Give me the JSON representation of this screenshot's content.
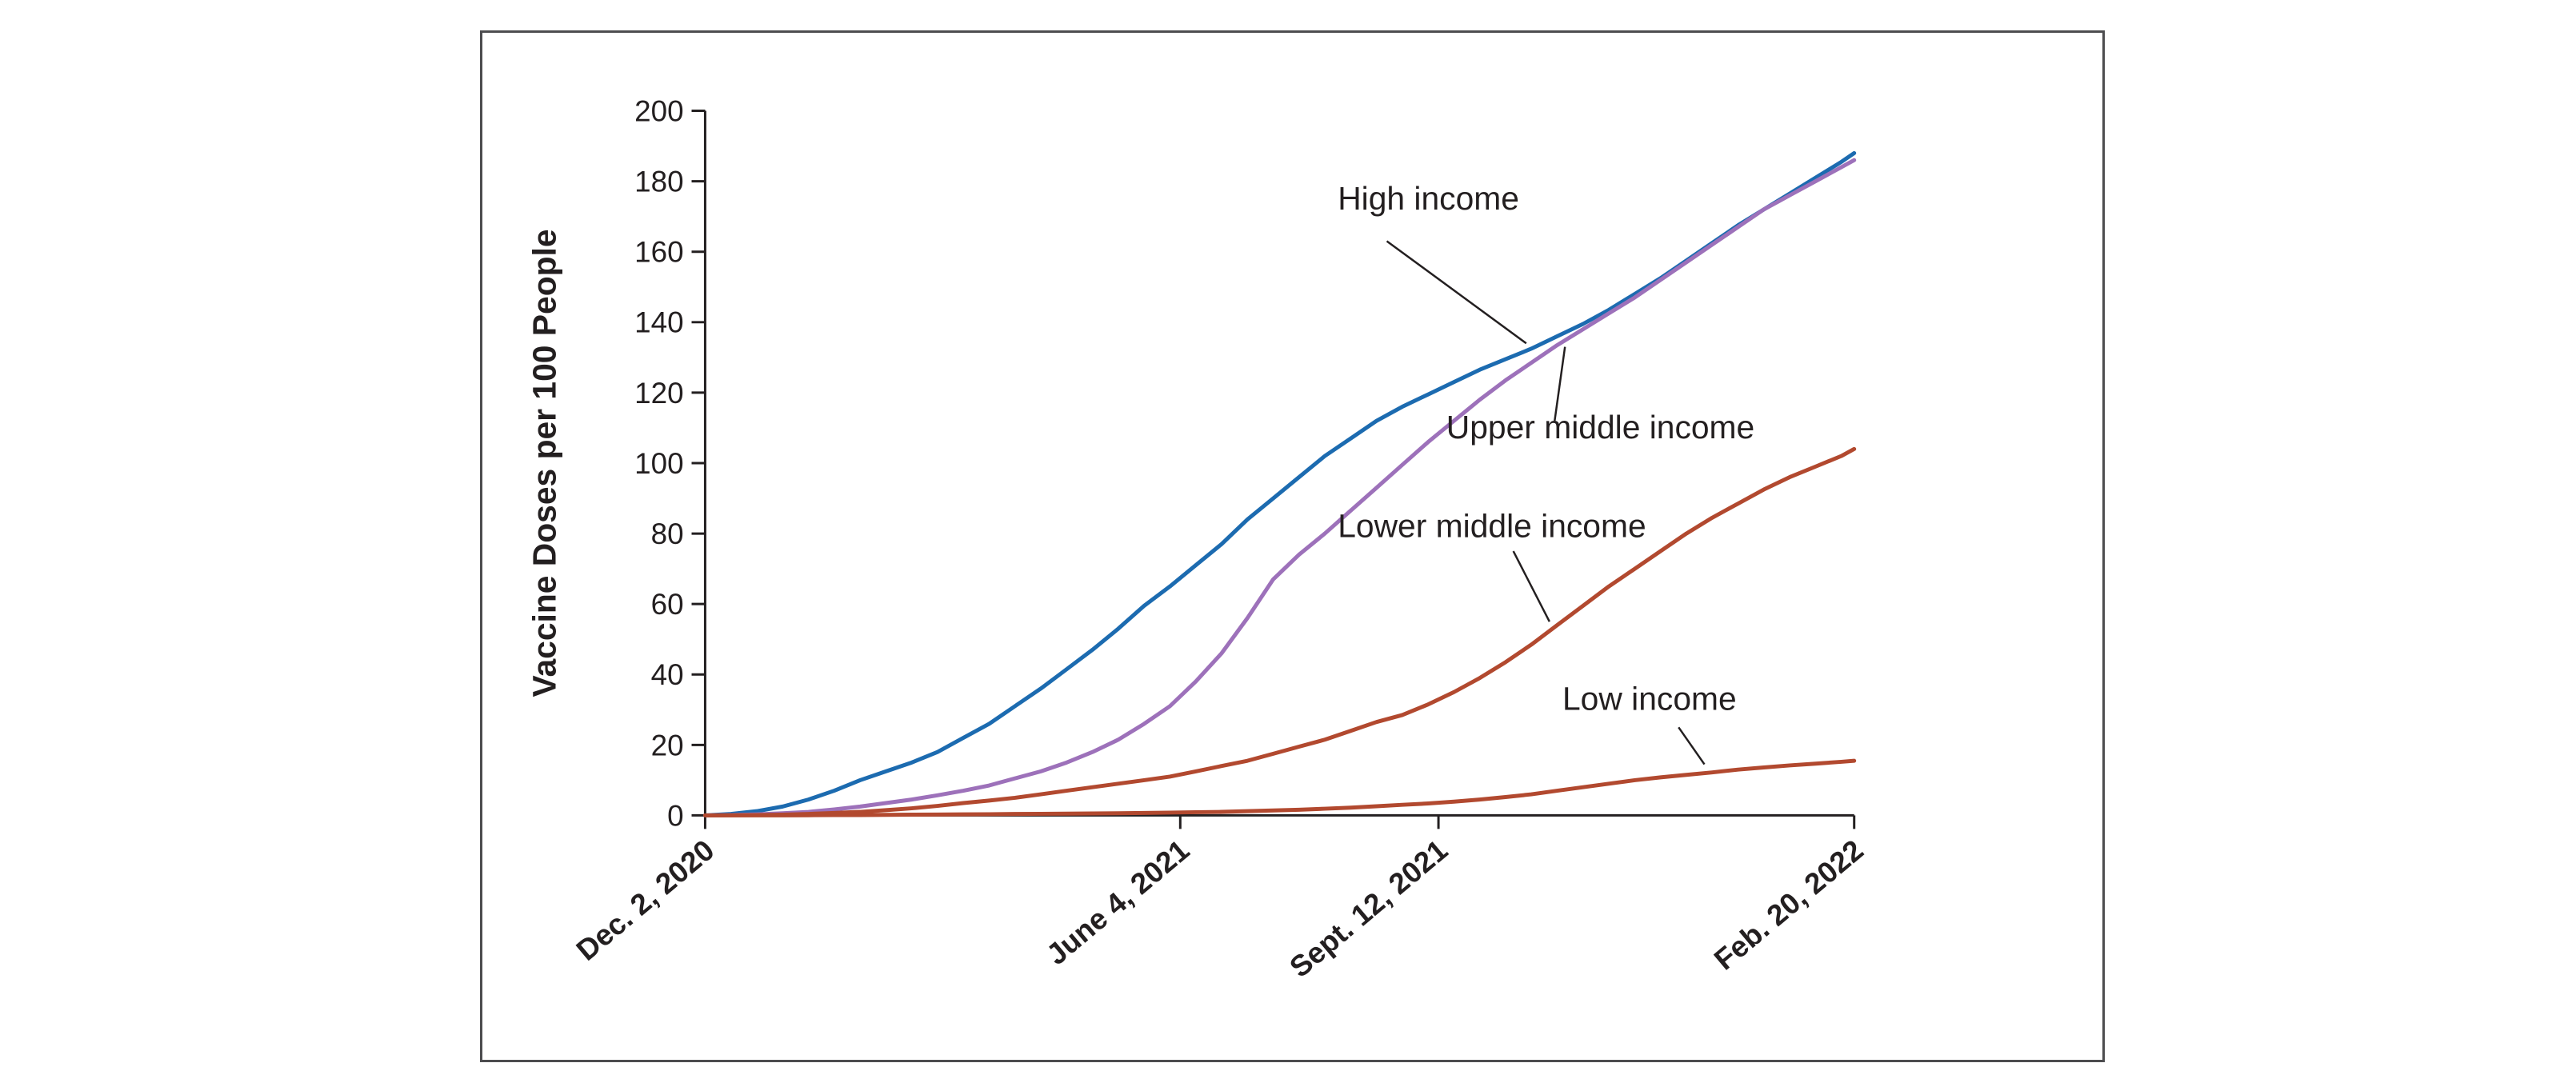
{
  "figure": {
    "title": "",
    "ylabel": "Vaccine Doses per 100 People"
  },
  "chart_data": {
    "type": "line",
    "title": "",
    "xlabel": "",
    "ylabel": "Vaccine Doses per 100 People",
    "x_unit": "days since Dec. 2, 2020",
    "xlim": [
      0,
      445
    ],
    "ylim": [
      0,
      200
    ],
    "y_tick_step": 20,
    "grid": false,
    "legend_position": "inline-annotations",
    "x_tick_positions": [
      0,
      184,
      284,
      445
    ],
    "x_tick_labels": [
      "Dec. 2, 2020",
      "June 4, 2021",
      "Sept. 12, 2021",
      "Feb. 20, 2022"
    ],
    "x": [
      0,
      10,
      20,
      30,
      40,
      50,
      60,
      70,
      80,
      90,
      100,
      110,
      120,
      130,
      140,
      150,
      160,
      170,
      180,
      190,
      200,
      210,
      220,
      230,
      240,
      250,
      260,
      270,
      280,
      290,
      300,
      310,
      320,
      330,
      340,
      350,
      360,
      370,
      380,
      390,
      400,
      410,
      420,
      430,
      440,
      445
    ],
    "series": [
      {
        "name": "High income",
        "color": "#1c6bb0",
        "values": [
          0,
          0.4,
          1.2,
          2.5,
          4.5,
          7,
          10,
          12.5,
          15,
          18,
          22,
          26,
          31,
          36,
          41.5,
          47,
          53,
          59.5,
          65,
          71,
          77,
          84,
          90,
          96,
          102,
          107,
          112,
          116,
          119.5,
          123,
          126.5,
          129.5,
          132.5,
          136,
          139.5,
          143.5,
          148,
          152.5,
          157.5,
          162.5,
          167.5,
          172,
          176.5,
          181,
          185.5,
          188
        ]
      },
      {
        "name": "Upper middle income",
        "color": "#9d71ba",
        "values": [
          0,
          0.1,
          0.3,
          0.6,
          1,
          1.7,
          2.5,
          3.5,
          4.5,
          5.7,
          7,
          8.5,
          10.5,
          12.5,
          15,
          18,
          21.5,
          26,
          31,
          38,
          46,
          56,
          67,
          74,
          80,
          86.5,
          93,
          99.5,
          106,
          112,
          118,
          123.5,
          128.5,
          133.5,
          138,
          142.5,
          147,
          152,
          157,
          162,
          167,
          172,
          176,
          180,
          184,
          186
        ]
      },
      {
        "name": "Lower middle income",
        "color": "#b2492f",
        "values": [
          0,
          0.05,
          0.1,
          0.2,
          0.4,
          0.7,
          1,
          1.5,
          2,
          2.7,
          3.5,
          4.2,
          5,
          6,
          7,
          8,
          9,
          10,
          11,
          12.5,
          14,
          15.5,
          17.5,
          19.5,
          21.5,
          24,
          26.5,
          28.5,
          31.5,
          35,
          39,
          43.5,
          48.5,
          54,
          59.5,
          65,
          70,
          75,
          80,
          84.5,
          88.5,
          92.5,
          96,
          99,
          102,
          104
        ]
      },
      {
        "name": "Low income",
        "color": "#b2492f",
        "values": [
          0,
          0,
          0,
          0,
          0.05,
          0.1,
          0.1,
          0.15,
          0.2,
          0.25,
          0.3,
          0.35,
          0.4,
          0.45,
          0.5,
          0.55,
          0.6,
          0.7,
          0.8,
          0.9,
          1,
          1.2,
          1.4,
          1.6,
          1.9,
          2.2,
          2.6,
          3,
          3.4,
          3.9,
          4.5,
          5.2,
          6,
          7,
          8,
          9,
          10,
          10.8,
          11.5,
          12.2,
          13,
          13.6,
          14.2,
          14.7,
          15.2,
          15.5
        ]
      }
    ],
    "annotations": [
      {
        "label": "High income",
        "text_x": 245,
        "text_y": 172,
        "line": [
          [
            264,
            163
          ],
          [
            318,
            134
          ]
        ]
      },
      {
        "label": "Upper middle income",
        "text_x": 287,
        "text_y": 107,
        "line": [
          [
            329,
            112
          ],
          [
            333,
            133
          ]
        ]
      },
      {
        "label": "Lower middle income",
        "text_x": 245,
        "text_y": 79,
        "line": [
          [
            313,
            75
          ],
          [
            327,
            55
          ]
        ]
      },
      {
        "label": "Low income",
        "text_x": 332,
        "text_y": 30,
        "line": [
          [
            377,
            25
          ],
          [
            387,
            14.5
          ]
        ]
      }
    ]
  }
}
